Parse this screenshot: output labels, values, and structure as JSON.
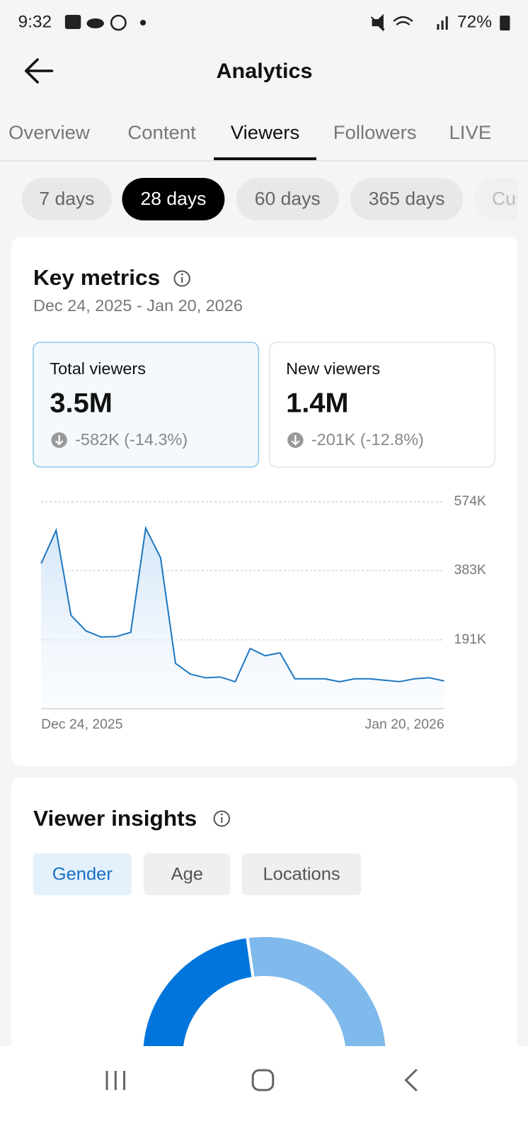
{
  "status_bar": {
    "time": "9:32",
    "battery": "72%"
  },
  "header": {
    "title": "Analytics"
  },
  "tabs": {
    "items": [
      "Overview",
      "Content",
      "Viewers",
      "Followers",
      "LIVE"
    ],
    "active": 2
  },
  "ranges": {
    "items": [
      "7 days",
      "28 days",
      "60 days",
      "365 days",
      "Custom"
    ],
    "active": 1
  },
  "key_metrics": {
    "title": "Key metrics",
    "date_range": "Dec 24, 2025 - Jan 20, 2026",
    "selected": 0,
    "cards": [
      {
        "label": "Total viewers",
        "value": "3.5M",
        "change": "-582K (-14.3%)"
      },
      {
        "label": "New viewers",
        "value": "1.4M",
        "change": "-201K (-12.8%)"
      }
    ]
  },
  "chart_data": {
    "type": "line",
    "categories": [
      "Dec 24, 2025",
      null,
      null,
      null,
      null,
      null,
      null,
      null,
      null,
      null,
      null,
      null,
      null,
      null,
      null,
      null,
      null,
      null,
      null,
      null,
      null,
      null,
      null,
      null,
      null,
      null,
      null,
      "Jan 20, 2026"
    ],
    "values": [
      403000,
      495000,
      259000,
      216000,
      199000,
      200000,
      212000,
      501000,
      419000,
      126000,
      96000,
      86000,
      88000,
      75000,
      167000,
      147000,
      155000,
      83000,
      83000,
      83000,
      75000,
      83000,
      83000,
      79000,
      75000,
      83000,
      86000,
      77000
    ],
    "color": "#1f78c1",
    "ylim": [
      0,
      574000
    ],
    "yticks": [
      {
        "value": 191000,
        "label": "191K"
      },
      {
        "value": 383000,
        "label": "383K"
      },
      {
        "value": 574000,
        "label": "574K"
      }
    ],
    "grid": true
  },
  "insights": {
    "title": "Viewer insights",
    "tabs": {
      "items": [
        "Gender",
        "Age",
        "Locations"
      ],
      "active": 0
    },
    "donut": {
      "type": "pie",
      "values": [
        48,
        52
      ],
      "colors": [
        "#0075db",
        "#80b9ec"
      ]
    }
  }
}
